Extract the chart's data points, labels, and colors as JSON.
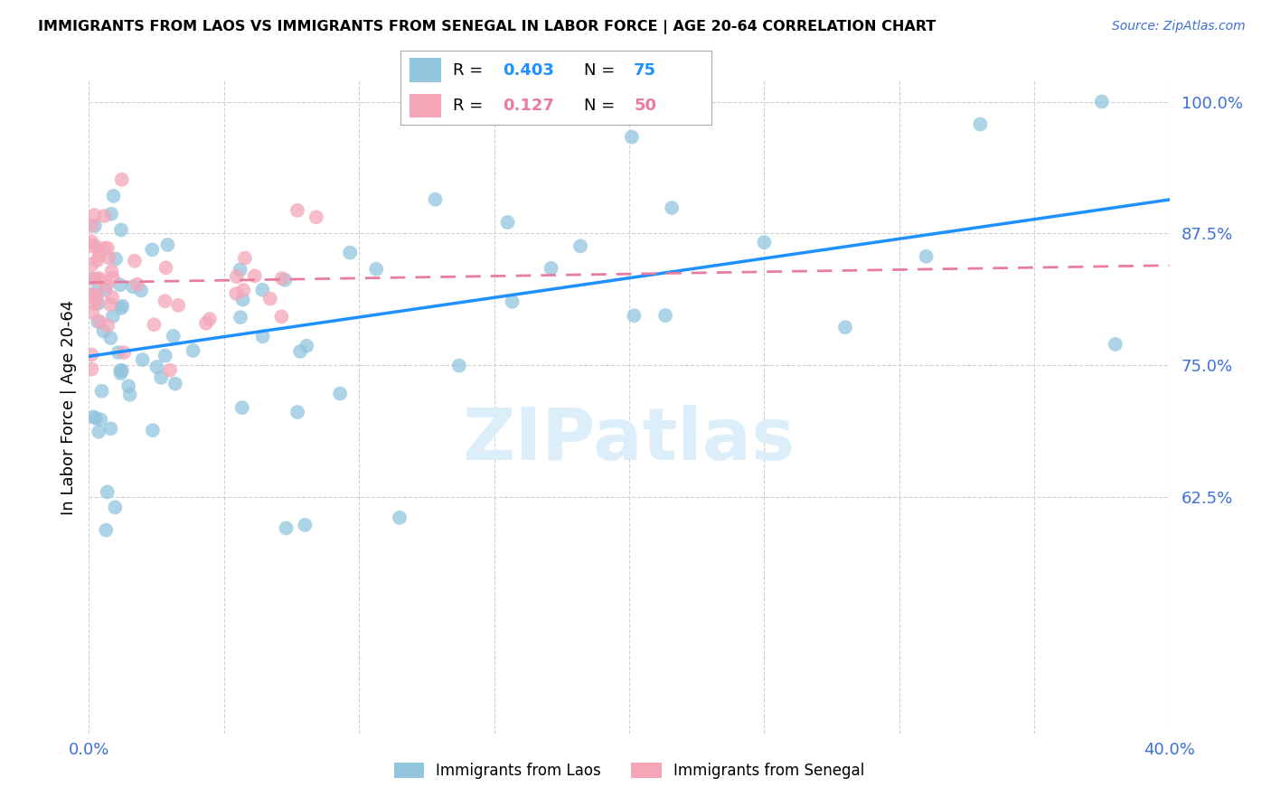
{
  "title": "IMMIGRANTS FROM LAOS VS IMMIGRANTS FROM SENEGAL IN LABOR FORCE | AGE 20-64 CORRELATION CHART",
  "source": "Source: ZipAtlas.com",
  "ylabel": "In Labor Force | Age 20-64",
  "legend_laos": "Immigrants from Laos",
  "legend_senegal": "Immigrants from Senegal",
  "R_laos": 0.403,
  "N_laos": 75,
  "R_senegal": 0.127,
  "N_senegal": 50,
  "xmin": 0.0,
  "xmax": 0.4,
  "ymin": 0.4,
  "ymax": 1.02,
  "yticks": [
    0.625,
    0.75,
    0.875,
    1.0
  ],
  "ytick_labels": [
    "62.5%",
    "75.0%",
    "87.5%",
    "100.0%"
  ],
  "xticks": [
    0.0,
    0.05,
    0.1,
    0.15,
    0.2,
    0.25,
    0.3,
    0.35,
    0.4
  ],
  "color_laos": "#92c5de",
  "color_senegal": "#f4a6b8",
  "color_laos_line": "#1e90ff",
  "color_senegal_line": "#e87ca0",
  "color_axis_text": "#3d6fd4",
  "watermark_color": "#dceefa"
}
